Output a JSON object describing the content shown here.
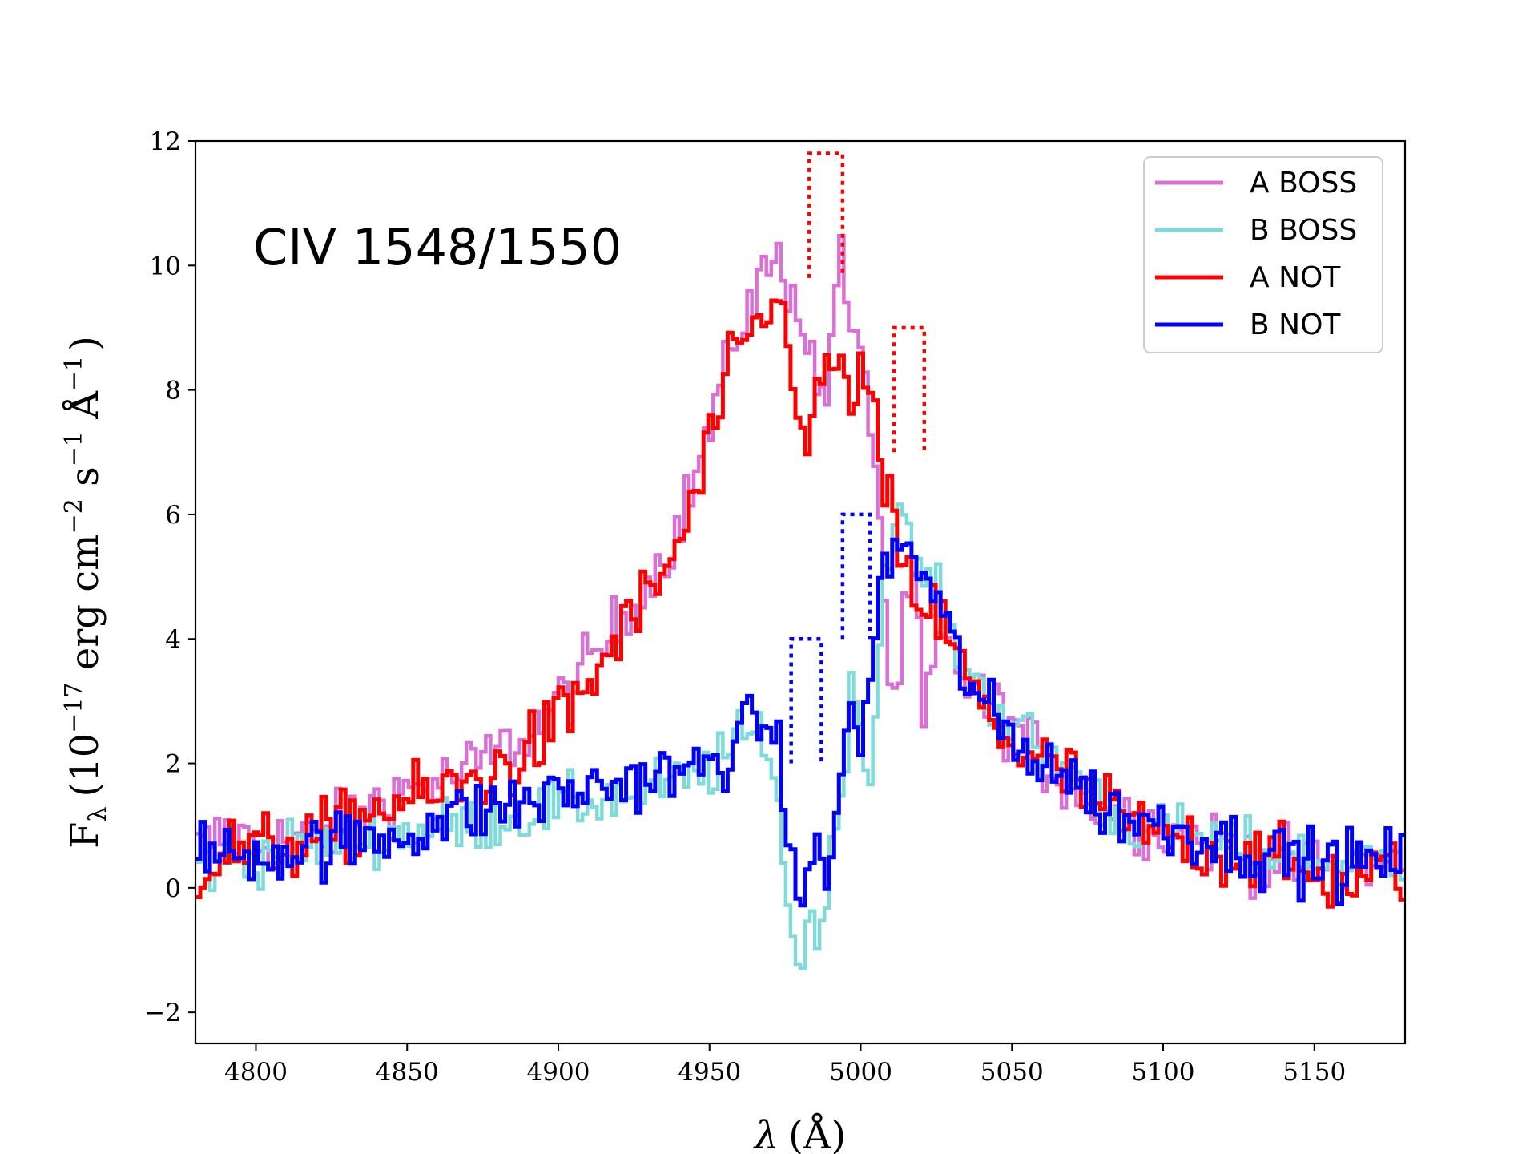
{
  "chart_data": {
    "type": "line",
    "title": "",
    "annotation": "CIV 1548/1550",
    "xlabel_symbol": "λ",
    "xlabel_unit": "(Å)",
    "ylabel": {
      "main": "F",
      "sub": "λ",
      "unit_open": "(10",
      "exp1": "−17",
      "unit_mid": " erg cm",
      "exp2": "−2",
      "unit_s": " s",
      "exp3": "−1",
      "unit_a": " Å",
      "exp4": "−1",
      "unit_close": ")"
    },
    "xlim": [
      4780,
      5180
    ],
    "ylim": [
      -2.5,
      12
    ],
    "xticks": [
      4800,
      4850,
      4900,
      4950,
      5000,
      5050,
      5100,
      5150
    ],
    "yticks": [
      -2,
      0,
      2,
      4,
      6,
      8,
      10,
      12
    ],
    "ytick_labels": [
      "−2",
      "0",
      "2",
      "4",
      "6",
      "8",
      "10",
      "12"
    ],
    "legend_position": "top-right",
    "series": [
      {
        "name": "A BOSS",
        "color": "#da70d6",
        "points": [
          [
            4780,
            0.6
          ],
          [
            4790,
            0.9
          ],
          [
            4800,
            0.7
          ],
          [
            4810,
            0.8
          ],
          [
            4820,
            0.8
          ],
          [
            4830,
            1.1
          ],
          [
            4840,
            1.4
          ],
          [
            4850,
            1.6
          ],
          [
            4860,
            1.7
          ],
          [
            4870,
            1.9
          ],
          [
            4880,
            2.2
          ],
          [
            4890,
            2.5
          ],
          [
            4900,
            3.0
          ],
          [
            4910,
            3.6
          ],
          [
            4920,
            4.3
          ],
          [
            4930,
            5.0
          ],
          [
            4940,
            5.9
          ],
          [
            4950,
            7.5
          ],
          [
            4955,
            8.3
          ],
          [
            4960,
            9.2
          ],
          [
            4965,
            9.6
          ],
          [
            4970,
            10.1
          ],
          [
            4975,
            9.8
          ],
          [
            4980,
            9.2
          ],
          [
            4985,
            8.0
          ],
          [
            4988,
            7.8
          ],
          [
            4990,
            9.6
          ],
          [
            4993,
            10.0
          ],
          [
            4996,
            9.0
          ],
          [
            5000,
            8.2
          ],
          [
            5003,
            7.4
          ],
          [
            5006,
            5.8
          ],
          [
            5009,
            3.0
          ],
          [
            5012,
            3.5
          ],
          [
            5015,
            4.8
          ],
          [
            5018,
            4.5
          ],
          [
            5020,
            2.5
          ],
          [
            5025,
            4.0
          ],
          [
            5030,
            3.6
          ],
          [
            5040,
            3.0
          ],
          [
            5050,
            2.6
          ],
          [
            5060,
            2.0
          ],
          [
            5070,
            1.6
          ],
          [
            5080,
            1.3
          ],
          [
            5090,
            1.1
          ],
          [
            5100,
            0.9
          ],
          [
            5110,
            0.8
          ],
          [
            5120,
            0.7
          ],
          [
            5130,
            0.5
          ],
          [
            5140,
            0.4
          ],
          [
            5150,
            0.3
          ],
          [
            5160,
            0.3
          ],
          [
            5170,
            0.4
          ],
          [
            5180,
            0.3
          ]
        ]
      },
      {
        "name": "B BOSS",
        "color": "#7fdbda",
        "points": [
          [
            4780,
            0.3
          ],
          [
            4790,
            0.4
          ],
          [
            4800,
            0.5
          ],
          [
            4810,
            0.6
          ],
          [
            4820,
            0.7
          ],
          [
            4830,
            0.7
          ],
          [
            4840,
            0.8
          ],
          [
            4850,
            0.9
          ],
          [
            4860,
            1.0
          ],
          [
            4870,
            1.0
          ],
          [
            4880,
            1.1
          ],
          [
            4890,
            1.2
          ],
          [
            4900,
            1.3
          ],
          [
            4910,
            1.4
          ],
          [
            4920,
            1.5
          ],
          [
            4930,
            1.6
          ],
          [
            4940,
            1.7
          ],
          [
            4950,
            1.9
          ],
          [
            4960,
            2.4
          ],
          [
            4968,
            2.5
          ],
          [
            4972,
            1.4
          ],
          [
            4975,
            -0.3
          ],
          [
            4978,
            -1.0
          ],
          [
            4980,
            -1.2
          ],
          [
            4983,
            -0.4
          ],
          [
            4986,
            -0.6
          ],
          [
            4990,
            0.5
          ],
          [
            4993,
            1.6
          ],
          [
            4996,
            3.4
          ],
          [
            4999,
            2.8
          ],
          [
            5002,
            1.5
          ],
          [
            5005,
            3.5
          ],
          [
            5008,
            5.6
          ],
          [
            5012,
            6.0
          ],
          [
            5016,
            5.4
          ],
          [
            5020,
            4.9
          ],
          [
            5025,
            4.6
          ],
          [
            5030,
            3.9
          ],
          [
            5040,
            3.1
          ],
          [
            5050,
            2.6
          ],
          [
            5060,
            2.2
          ],
          [
            5070,
            1.8
          ],
          [
            5080,
            1.3
          ],
          [
            5090,
            1.0
          ],
          [
            5100,
            0.9
          ],
          [
            5110,
            0.8
          ],
          [
            5120,
            0.7
          ],
          [
            5130,
            0.6
          ],
          [
            5140,
            0.5
          ],
          [
            5150,
            0.4
          ],
          [
            5160,
            0.4
          ],
          [
            5170,
            0.4
          ],
          [
            5180,
            0.5
          ]
        ]
      },
      {
        "name": "A NOT",
        "color": "#ff0000",
        "points": [
          [
            4780,
            0.3
          ],
          [
            4790,
            0.6
          ],
          [
            4800,
            0.6
          ],
          [
            4810,
            0.7
          ],
          [
            4820,
            0.8
          ],
          [
            4830,
            1.0
          ],
          [
            4840,
            1.3
          ],
          [
            4850,
            1.4
          ],
          [
            4860,
            1.5
          ],
          [
            4870,
            1.7
          ],
          [
            4880,
            1.9
          ],
          [
            4890,
            2.2
          ],
          [
            4900,
            2.7
          ],
          [
            4910,
            3.3
          ],
          [
            4920,
            4.1
          ],
          [
            4930,
            4.7
          ],
          [
            4940,
            5.6
          ],
          [
            4945,
            6.3
          ],
          [
            4950,
            7.3
          ],
          [
            4955,
            8.1
          ],
          [
            4960,
            8.6
          ],
          [
            4965,
            9.0
          ],
          [
            4970,
            9.4
          ],
          [
            4975,
            9.0
          ],
          [
            4978,
            8.1
          ],
          [
            4982,
            6.8
          ],
          [
            4986,
            8.2
          ],
          [
            4990,
            8.5
          ],
          [
            4994,
            7.9
          ],
          [
            4998,
            8.2
          ],
          [
            5002,
            8.0
          ],
          [
            5006,
            6.6
          ],
          [
            5010,
            5.8
          ],
          [
            5013,
            5.1
          ],
          [
            5016,
            4.8
          ],
          [
            5020,
            4.6
          ],
          [
            5025,
            4.3
          ],
          [
            5030,
            3.8
          ],
          [
            5040,
            2.8
          ],
          [
            5050,
            2.3
          ],
          [
            5060,
            2.0
          ],
          [
            5070,
            1.7
          ],
          [
            5080,
            1.3
          ],
          [
            5090,
            1.0
          ],
          [
            5100,
            0.8
          ],
          [
            5110,
            0.7
          ],
          [
            5120,
            0.6
          ],
          [
            5130,
            0.5
          ],
          [
            5140,
            0.3
          ],
          [
            5150,
            0.2
          ],
          [
            5160,
            0.1
          ],
          [
            5170,
            0.2
          ],
          [
            5180,
            0.4
          ]
        ]
      },
      {
        "name": "B NOT",
        "color": "#0000ff",
        "points": [
          [
            4780,
            0.6
          ],
          [
            4790,
            0.5
          ],
          [
            4800,
            0.6
          ],
          [
            4810,
            0.6
          ],
          [
            4820,
            0.7
          ],
          [
            4830,
            0.7
          ],
          [
            4840,
            0.8
          ],
          [
            4850,
            0.9
          ],
          [
            4860,
            1.1
          ],
          [
            4870,
            1.2
          ],
          [
            4880,
            1.3
          ],
          [
            4890,
            1.4
          ],
          [
            4900,
            1.5
          ],
          [
            4910,
            1.6
          ],
          [
            4920,
            1.7
          ],
          [
            4930,
            1.8
          ],
          [
            4940,
            1.8
          ],
          [
            4950,
            2.0
          ],
          [
            4960,
            2.4
          ],
          [
            4965,
            2.7
          ],
          [
            4970,
            2.6
          ],
          [
            4973,
            1.8
          ],
          [
            4976,
            0.4
          ],
          [
            4978,
            0.0
          ],
          [
            4981,
            0.3
          ],
          [
            4984,
            0.4
          ],
          [
            4988,
            0.2
          ],
          [
            4991,
            1.1
          ],
          [
            4994,
            2.2
          ],
          [
            4997,
            3.0
          ],
          [
            5000,
            2.4
          ],
          [
            5003,
            3.6
          ],
          [
            5006,
            4.9
          ],
          [
            5010,
            5.4
          ],
          [
            5014,
            5.6
          ],
          [
            5018,
            5.2
          ],
          [
            5022,
            4.8
          ],
          [
            5026,
            4.4
          ],
          [
            5030,
            3.8
          ],
          [
            5040,
            2.9
          ],
          [
            5050,
            2.3
          ],
          [
            5060,
            2.1
          ],
          [
            5070,
            1.7
          ],
          [
            5080,
            1.3
          ],
          [
            5090,
            1.1
          ],
          [
            5100,
            1.0
          ],
          [
            5110,
            0.9
          ],
          [
            5120,
            0.7
          ],
          [
            5130,
            0.6
          ],
          [
            5140,
            0.5
          ],
          [
            5150,
            0.4
          ],
          [
            5160,
            0.4
          ],
          [
            5170,
            0.4
          ],
          [
            5180,
            0.5
          ]
        ]
      }
    ],
    "dotted_boxes": [
      {
        "color": "#ff0000",
        "x0": 4983,
        "x1": 4994,
        "y0": 9.8,
        "y1": 11.8
      },
      {
        "color": "#ff0000",
        "x0": 5011,
        "x1": 5021,
        "y0": 7.0,
        "y1": 9.0
      },
      {
        "color": "#0000ff",
        "x0": 4994,
        "x1": 5003,
        "y0": 4.0,
        "y1": 6.0
      },
      {
        "color": "#0000ff",
        "x0": 4977,
        "x1": 4987,
        "y0": 2.0,
        "y1": 4.0
      }
    ]
  }
}
